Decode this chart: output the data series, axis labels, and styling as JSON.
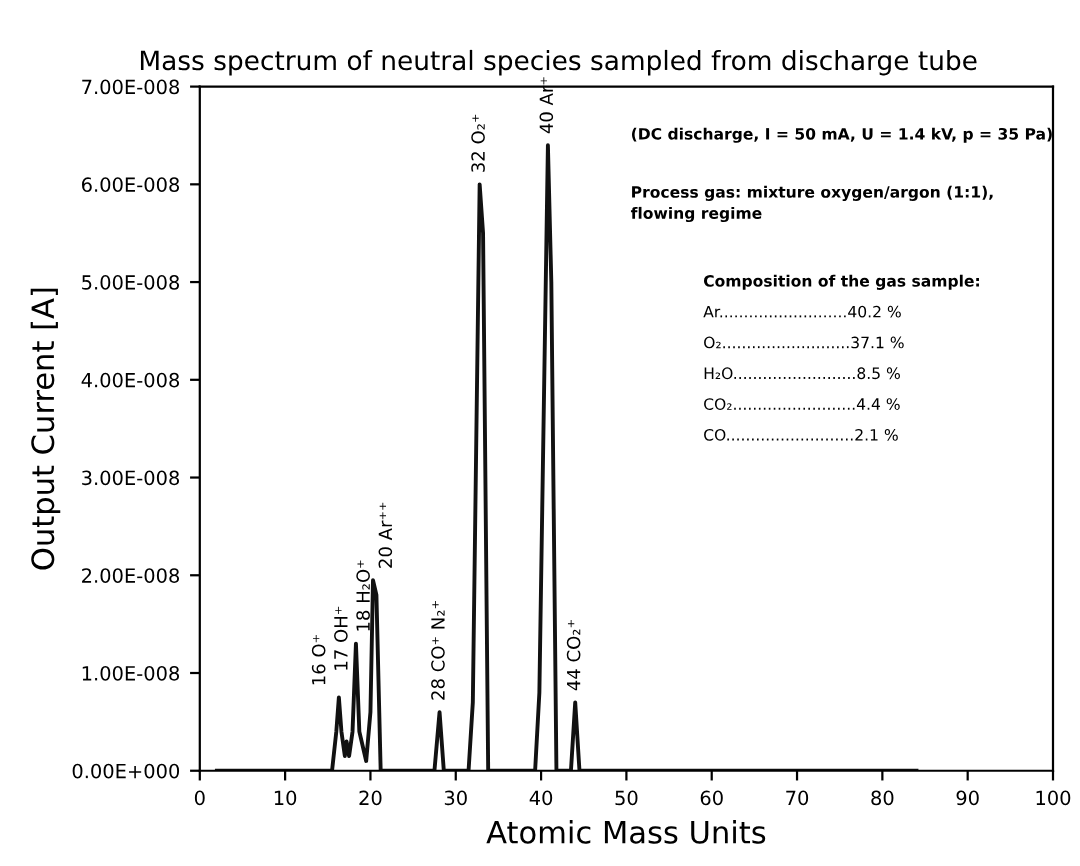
{
  "chart_data": {
    "type": "line",
    "title": "Mass spectrum of neutral species sampled from discharge tube",
    "xlabel": "Atomic Mass Units",
    "ylabel": "Output Current [A]",
    "xlim": [
      0,
      100
    ],
    "xticks": [
      0,
      10,
      20,
      30,
      40,
      50,
      60,
      70,
      80,
      90,
      100
    ],
    "ylim": [
      0,
      7e-08
    ],
    "yticks": [
      {
        "value": 0,
        "label": "0.00E+000"
      },
      {
        "value": 1e-08,
        "label": "1.00E-008"
      },
      {
        "value": 2e-08,
        "label": "2.00E-008"
      },
      {
        "value": 3e-08,
        "label": "3.00E-008"
      },
      {
        "value": 4e-08,
        "label": "4.00E-008"
      },
      {
        "value": 5e-08,
        "label": "5.00E-008"
      },
      {
        "value": 6e-08,
        "label": "6.00E-008"
      },
      {
        "value": 7e-08,
        "label": "7.00E-008"
      }
    ],
    "grid": false,
    "legend": false,
    "marker": "none",
    "line_style": "solid",
    "series": [
      {
        "color": "#111111",
        "x": [
          2,
          10,
          14,
          15.5,
          16,
          16.3,
          16.6,
          17,
          17.2,
          17.5,
          17.9,
          18.3,
          18.7,
          19.5,
          20,
          20.3,
          20.7,
          21.2,
          27.5,
          28.1,
          28.6,
          31.5,
          32,
          32.8,
          33.2,
          33.8,
          39.3,
          39.8,
          40.8,
          41.2,
          41.8,
          43.5,
          44,
          44.5,
          50,
          60,
          70,
          84
        ],
        "values": [
          0,
          0,
          0,
          0,
          4e-09,
          7.5e-09,
          4e-09,
          1.5e-09,
          3e-09,
          1.5e-09,
          4e-09,
          1.3e-08,
          4e-09,
          1e-09,
          6e-09,
          1.95e-08,
          1.8e-08,
          0,
          0,
          6e-09,
          0,
          0,
          7e-09,
          6e-08,
          5.5e-08,
          0,
          0,
          8e-09,
          6.4e-08,
          5e-08,
          0,
          0,
          7e-09,
          0,
          0,
          0,
          0,
          0
        ]
      }
    ],
    "annotations": [
      {
        "text": "16 O⁺",
        "x": 16.3,
        "y": 7.5e-09
      },
      {
        "text": "17 OH⁺",
        "x": 17.2,
        "y": 9e-09
      },
      {
        "text": "18 H₂O⁺",
        "x": 18.3,
        "y": 1.3e-08
      },
      {
        "text": "20 Ar⁺⁺",
        "x": 20.3,
        "y": 1.95e-08
      },
      {
        "text": "28 CO⁺ N₂⁺",
        "x": 28.1,
        "y": 6e-09
      },
      {
        "text": "32 O₂⁺",
        "x": 32.8,
        "y": 6e-08
      },
      {
        "text": "40 Ar⁺",
        "x": 40.8,
        "y": 6.4e-08
      },
      {
        "text": "44 CO₂⁺",
        "x": 44,
        "y": 7e-09
      },
      "(DC discharge, I = 50 mA, U = 1.4 kV, p = 35 Pa)",
      "Process gas: mixture oxygen/argon (1:1),\nflowing regime",
      "Composition of the gas sample:",
      "Ar..........................40.2 %",
      "O₂..........................37.1 %",
      "H₂O.........................8.5 %",
      "CO₂.........................4.4 %",
      "CO..........................2.1 %"
    ]
  }
}
